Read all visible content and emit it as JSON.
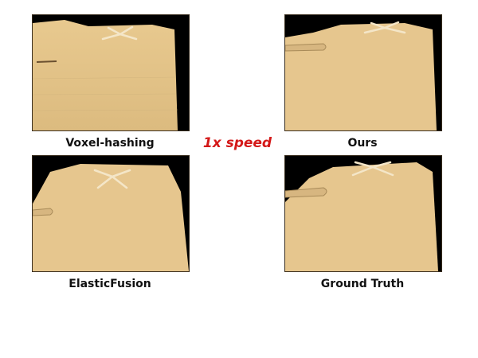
{
  "speed_label": "1x speed",
  "panels": [
    {
      "label": "Voxel-hashing"
    },
    {
      "label": "Ours"
    },
    {
      "label": "ElasticFusion"
    },
    {
      "label": "Ground Truth"
    }
  ],
  "colors": {
    "floor": "#e6c68e",
    "background": "#000000",
    "speed_text": "#d41818"
  }
}
